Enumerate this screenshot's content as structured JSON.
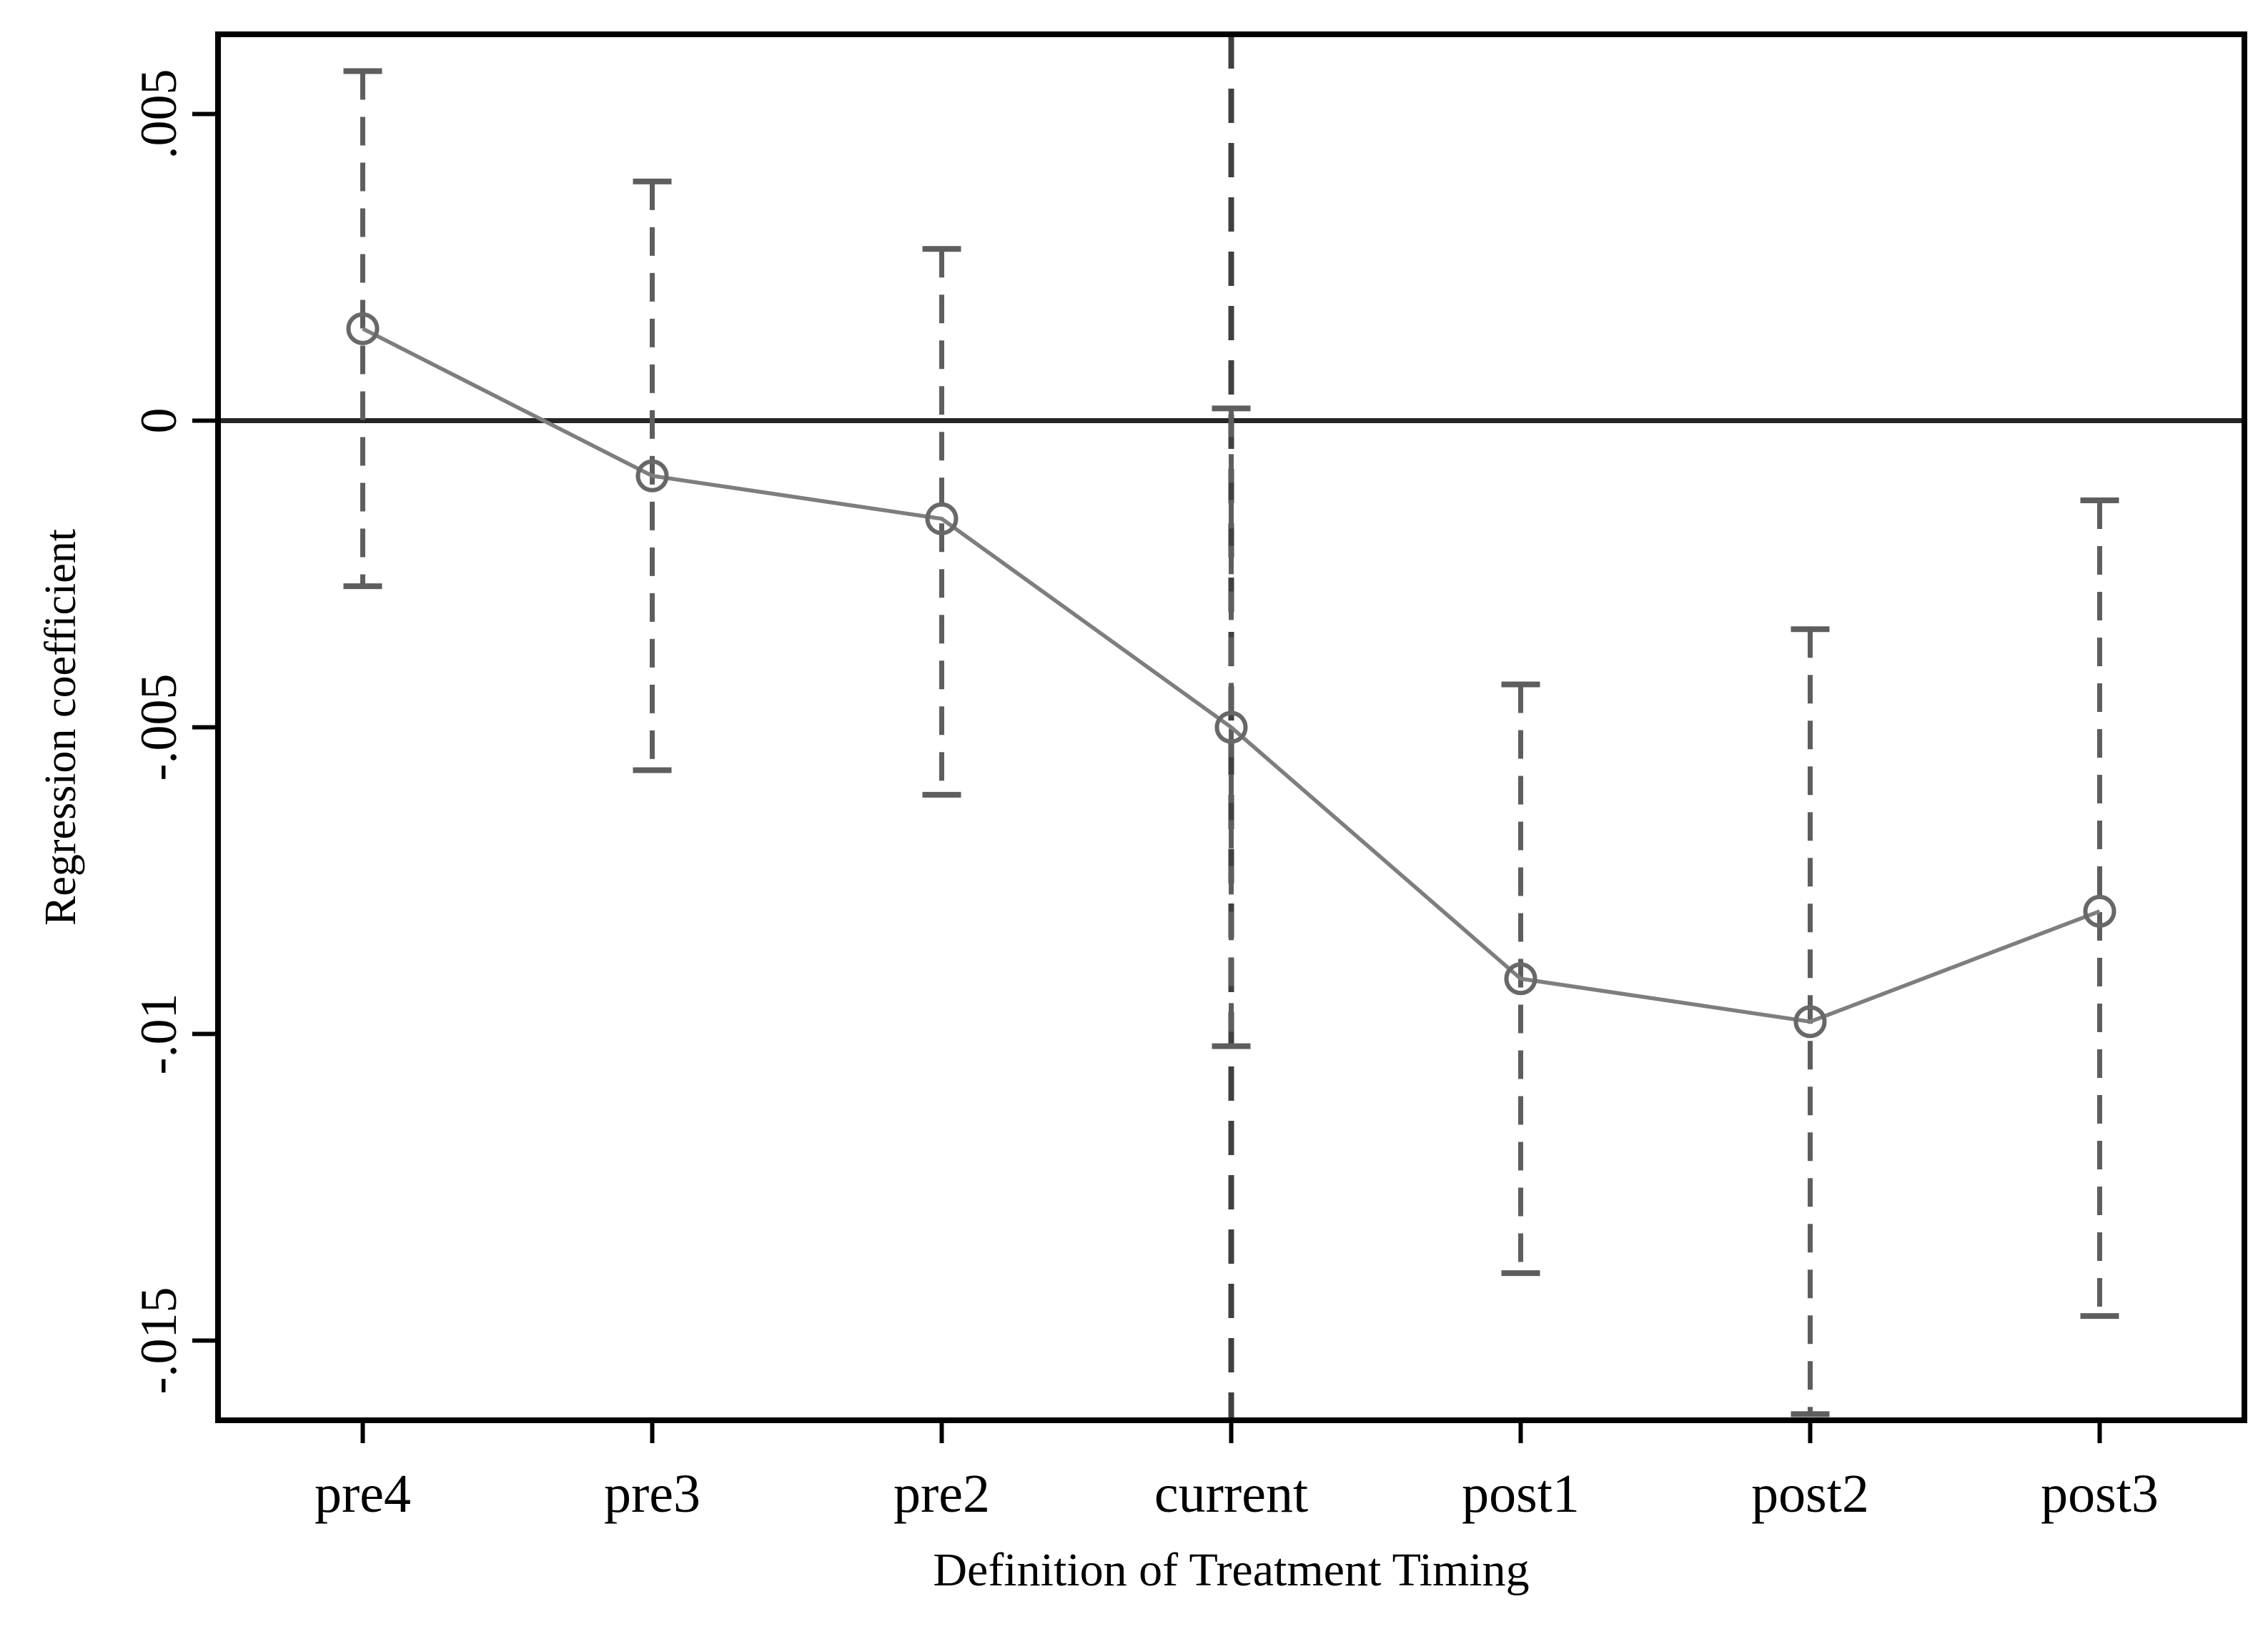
{
  "chart_data": {
    "type": "line",
    "title": "",
    "xlabel": "Definition of Treatment Timing",
    "ylabel": "Regression coefficient",
    "categories": [
      "pre4",
      "pre3",
      "pre2",
      "current",
      "post1",
      "post2",
      "post3"
    ],
    "series": [
      {
        "name": "Regression coefficient",
        "values": [
          0.0015,
          -0.0009,
          -0.0016,
          -0.005,
          -0.0091,
          -0.0098,
          -0.008
        ],
        "ci_upper": [
          0.0057,
          0.0039,
          0.0028,
          0.0002,
          -0.0043,
          -0.0034,
          -0.0013
        ],
        "ci_lower": [
          -0.0027,
          -0.0057,
          -0.0061,
          -0.0102,
          -0.0139,
          -0.0162,
          -0.0146
        ]
      }
    ],
    "y_ticks": [
      {
        "value": 0.005,
        "label": ".005"
      },
      {
        "value": 0,
        "label": "0"
      },
      {
        "value": -0.005,
        "label": "-.005"
      },
      {
        "value": -0.01,
        "label": "-.01"
      },
      {
        "value": -0.015,
        "label": "-.015"
      }
    ],
    "ylim": [
      -0.0163,
      0.0063
    ],
    "reference_lines": {
      "horizontal_y": 0,
      "vertical_category": "current"
    },
    "grid": "off",
    "legend": "none",
    "marker_style": "hollow-circle",
    "ci_style": "dashed-whisker-with-caps",
    "colors": {
      "background": "#ffffff",
      "frame": "#000000",
      "zero_line": "#262626",
      "vertical_reference_line": "#404040",
      "whisker": "#5e5e5e",
      "series_line": "#7e7e7e",
      "marker": "#686868",
      "text": "#000000"
    }
  }
}
